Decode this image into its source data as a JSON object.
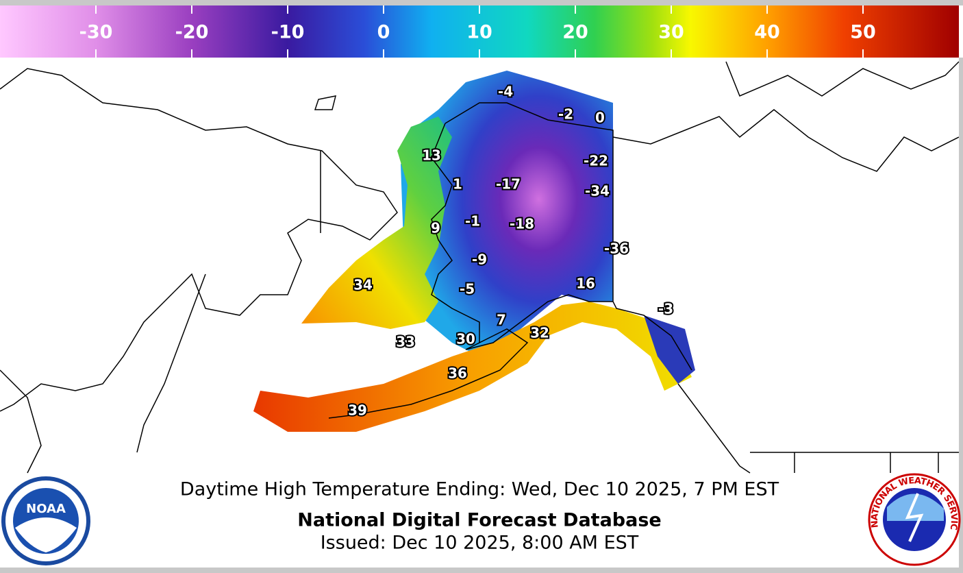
{
  "colorbar": {
    "range": [
      -40,
      60
    ],
    "ticks": [
      -30,
      -20,
      -10,
      0,
      10,
      20,
      30,
      40,
      50
    ]
  },
  "map_labels": [
    -4,
    -2,
    0,
    13,
    -22,
    1,
    -17,
    -34,
    9,
    -1,
    -18,
    -36,
    -9,
    34,
    16,
    -5,
    -3,
    7,
    32,
    33,
    30,
    36,
    39
  ],
  "caption": {
    "title": "Daytime High Temperature Ending: Wed, Dec 10 2025, 7 PM EST",
    "source": "National Digital Forecast Database",
    "issued": "Issued: Dec 10 2025, 8:00 AM EST"
  },
  "logos": {
    "noaa": "NOAA",
    "nws": "NATIONAL WEATHER SERVICE"
  }
}
